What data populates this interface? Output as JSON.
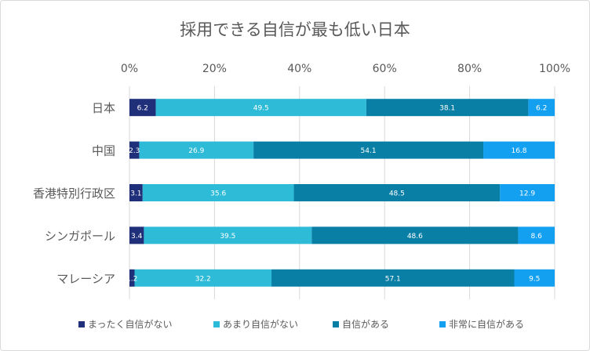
{
  "chart_data": {
    "type": "bar",
    "orientation": "horizontal",
    "stacked": "percent",
    "title": "採用できる自信が最も低い日本",
    "categories": [
      "日本",
      "中国",
      "香港特別行政区",
      "シンガポール",
      "マレーシア"
    ],
    "x_ticks": [
      "0%",
      "20%",
      "40%",
      "60%",
      "80%",
      "100%"
    ],
    "xlim": [
      0,
      100
    ],
    "grid": "vertical",
    "legend_position": "bottom",
    "series": [
      {
        "name": "まったく自信がない",
        "color": "#1f2f7a",
        "values": [
          6.2,
          2.3,
          3.1,
          3.4,
          1.2
        ],
        "labels": [
          "6.2",
          "2.3",
          "3.1",
          "3.4",
          "1.2"
        ]
      },
      {
        "name": "あまり自信がない",
        "color": "#2ebbd8",
        "values": [
          49.5,
          26.9,
          35.6,
          39.5,
          32.2
        ],
        "labels": [
          "49.5",
          "26.9",
          "35.6",
          "39.5",
          "32.2"
        ]
      },
      {
        "name": "自信がある",
        "color": "#0a7fa6",
        "values": [
          38.1,
          54.1,
          48.5,
          48.6,
          57.1
        ],
        "labels": [
          "38.1",
          "54.1",
          "48.5",
          "48.6",
          "57.1"
        ]
      },
      {
        "name": "非常に自信がある",
        "color": "#14a0f0",
        "values": [
          6.2,
          16.8,
          12.9,
          8.6,
          9.5
        ],
        "labels": [
          "6.2",
          "16.8",
          "12.9",
          "8.6",
          "9.5"
        ]
      }
    ]
  }
}
